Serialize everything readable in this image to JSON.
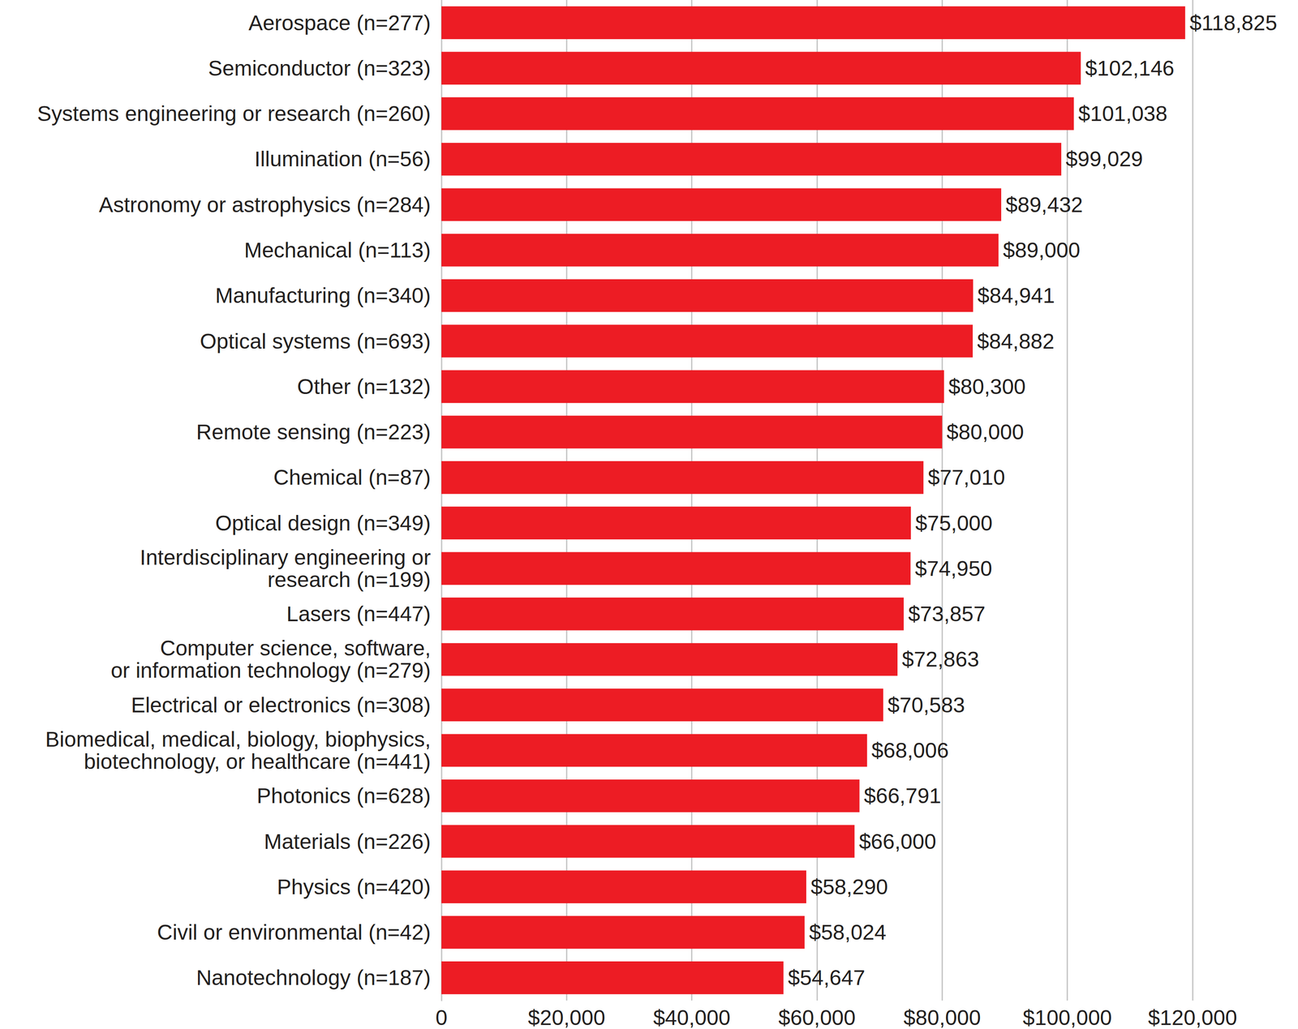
{
  "chart_data": {
    "type": "bar",
    "orientation": "horizontal",
    "categories": [
      "Aerospace (n=277)",
      "Semiconductor (n=323)",
      "Systems engineering or research (n=260)",
      "Illumination (n=56)",
      "Astronomy or astrophysics (n=284)",
      "Mechanical (n=113)",
      "Manufacturing (n=340)",
      "Optical systems (n=693)",
      "Other (n=132)",
      "Remote sensing (n=223)",
      "Chemical (n=87)",
      "Optical design (n=349)",
      "Interdisciplinary engineering or\nresearch (n=199)",
      "Lasers (n=447)",
      "Computer science, software,\nor information technology (n=279)",
      "Electrical or electronics (n=308)",
      "Biomedical, medical, biology, biophysics,\nbiotechnology, or healthcare (n=441)",
      "Photonics (n=628)",
      "Materials (n=226)",
      "Physics (n=420)",
      "Civil or environmental (n=42)",
      "Nanotechnology (n=187)"
    ],
    "values": [
      118825,
      102146,
      101038,
      99029,
      89432,
      89000,
      84941,
      84882,
      80300,
      80000,
      77010,
      75000,
      74950,
      73857,
      72863,
      70583,
      68006,
      66791,
      66000,
      58290,
      58024,
      54647
    ],
    "value_labels": [
      "$118,825",
      "$102,146",
      "$101,038",
      "$99,029",
      "$89,432",
      "$89,000",
      "$84,941",
      "$84,882",
      "$80,300",
      "$80,000",
      "$77,010",
      "$75,000",
      "$74,950",
      "$73,857",
      "$72,863",
      "$70,583",
      "$68,006",
      "$66,791",
      "$66,000",
      "$58,290",
      "$58,024",
      "$54,647"
    ],
    "color": "#ed1c24",
    "xlim": [
      0,
      120000
    ],
    "xticks": [
      0,
      {
        "value": 20000,
        "label": "$20,000"
      },
      {
        "value": 40000,
        "label": "$40,000"
      },
      {
        "value": 60000,
        "label": "$60,000"
      },
      {
        "value": 80000,
        "label": "$80,000"
      },
      {
        "value": 100000,
        "label": "$100,000"
      },
      {
        "value": 120000,
        "label": "$120,000"
      }
    ],
    "grid": true,
    "data_labels": true
  }
}
